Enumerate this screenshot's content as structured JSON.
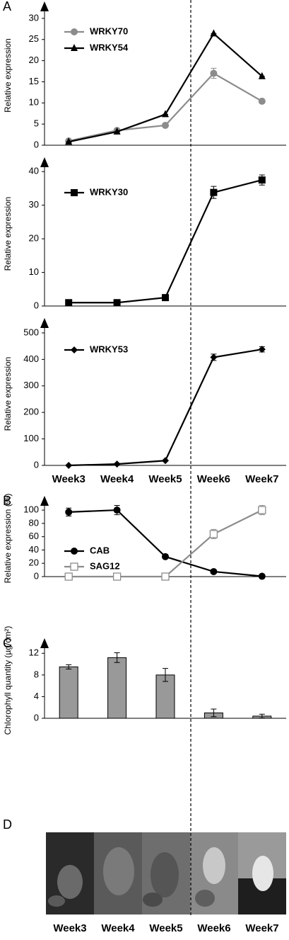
{
  "chart_data": [
    {
      "type": "line",
      "panel_label": "A",
      "y_label": "Relative expression",
      "categories": [
        null,
        null,
        null,
        null,
        null
      ],
      "ylim": [
        0,
        33
      ],
      "yticks": [
        0,
        5,
        10,
        15,
        20,
        25,
        30
      ],
      "series": [
        {
          "name": "WRKY70",
          "color": "#8c8c8c",
          "marker": "circle",
          "values": [
            1,
            3.5,
            4.7,
            17,
            10.4
          ],
          "errors": [
            0.2,
            0.3,
            0.3,
            1.2,
            0.4
          ]
        },
        {
          "name": "WRKY54",
          "color": "#000000",
          "marker": "triangle",
          "values": [
            0.8,
            3.2,
            7.3,
            26.4,
            16.3
          ],
          "errors": [
            0,
            0,
            0,
            0,
            0
          ]
        }
      ]
    },
    {
      "type": "line",
      "y_label": "Relative expression",
      "categories": [
        null,
        null,
        null,
        null,
        null
      ],
      "ylim": [
        0,
        43
      ],
      "yticks": [
        0,
        10,
        20,
        30,
        40
      ],
      "series": [
        {
          "name": "WRKY30",
          "color": "#000000",
          "marker": "square",
          "values": [
            1,
            1,
            2.5,
            33.8,
            37.5
          ],
          "errors": [
            0,
            0,
            0.3,
            1.8,
            1.5
          ]
        }
      ]
    },
    {
      "type": "line",
      "y_label": "Relative expression",
      "categories": [
        "Week3",
        "Week4",
        "Week5",
        "Week6",
        "Week7"
      ],
      "ylim": [
        0,
        540
      ],
      "yticks": [
        0,
        100,
        200,
        300,
        400,
        500
      ],
      "series": [
        {
          "name": "WRKY53",
          "color": "#000000",
          "marker": "diamond",
          "values": [
            0,
            5,
            18,
            408,
            438
          ],
          "errors": [
            0,
            0,
            2,
            12,
            10
          ]
        }
      ]
    },
    {
      "type": "line",
      "panel_label": "B",
      "y_label": "Relative expression (%)",
      "categories": [
        null,
        null,
        null,
        null,
        null
      ],
      "ylim": [
        0,
        115
      ],
      "yticks": [
        0,
        20,
        40,
        60,
        80,
        100
      ],
      "series": [
        {
          "name": "CAB",
          "color": "#000000",
          "marker": "circle",
          "values": [
            97,
            100,
            30,
            7.5,
            0.5
          ],
          "errors": [
            6,
            7,
            3,
            0,
            0
          ]
        },
        {
          "name": "SAG12",
          "color": "#8c8c8c",
          "marker": "open-square",
          "values": [
            0,
            0,
            0,
            64,
            100
          ],
          "errors": [
            0,
            0,
            0,
            7,
            7
          ]
        }
      ]
    },
    {
      "type": "bar",
      "panel_label": "C",
      "y_label": "Chlorophyll quantity (µg/cm²)",
      "categories": [
        null,
        null,
        null,
        null,
        null
      ],
      "ylim": [
        0,
        14
      ],
      "yticks": [
        0,
        4,
        8,
        12
      ],
      "color": "#999999",
      "values": [
        9.5,
        11.2,
        8,
        1,
        0.4
      ],
      "errors": [
        0.4,
        0.9,
        1.2,
        0.7,
        0.35
      ]
    }
  ],
  "panel_d": {
    "panel_label": "D",
    "captions": [
      "Week3",
      "Week4",
      "Week5",
      "Week6",
      "Week7"
    ]
  }
}
